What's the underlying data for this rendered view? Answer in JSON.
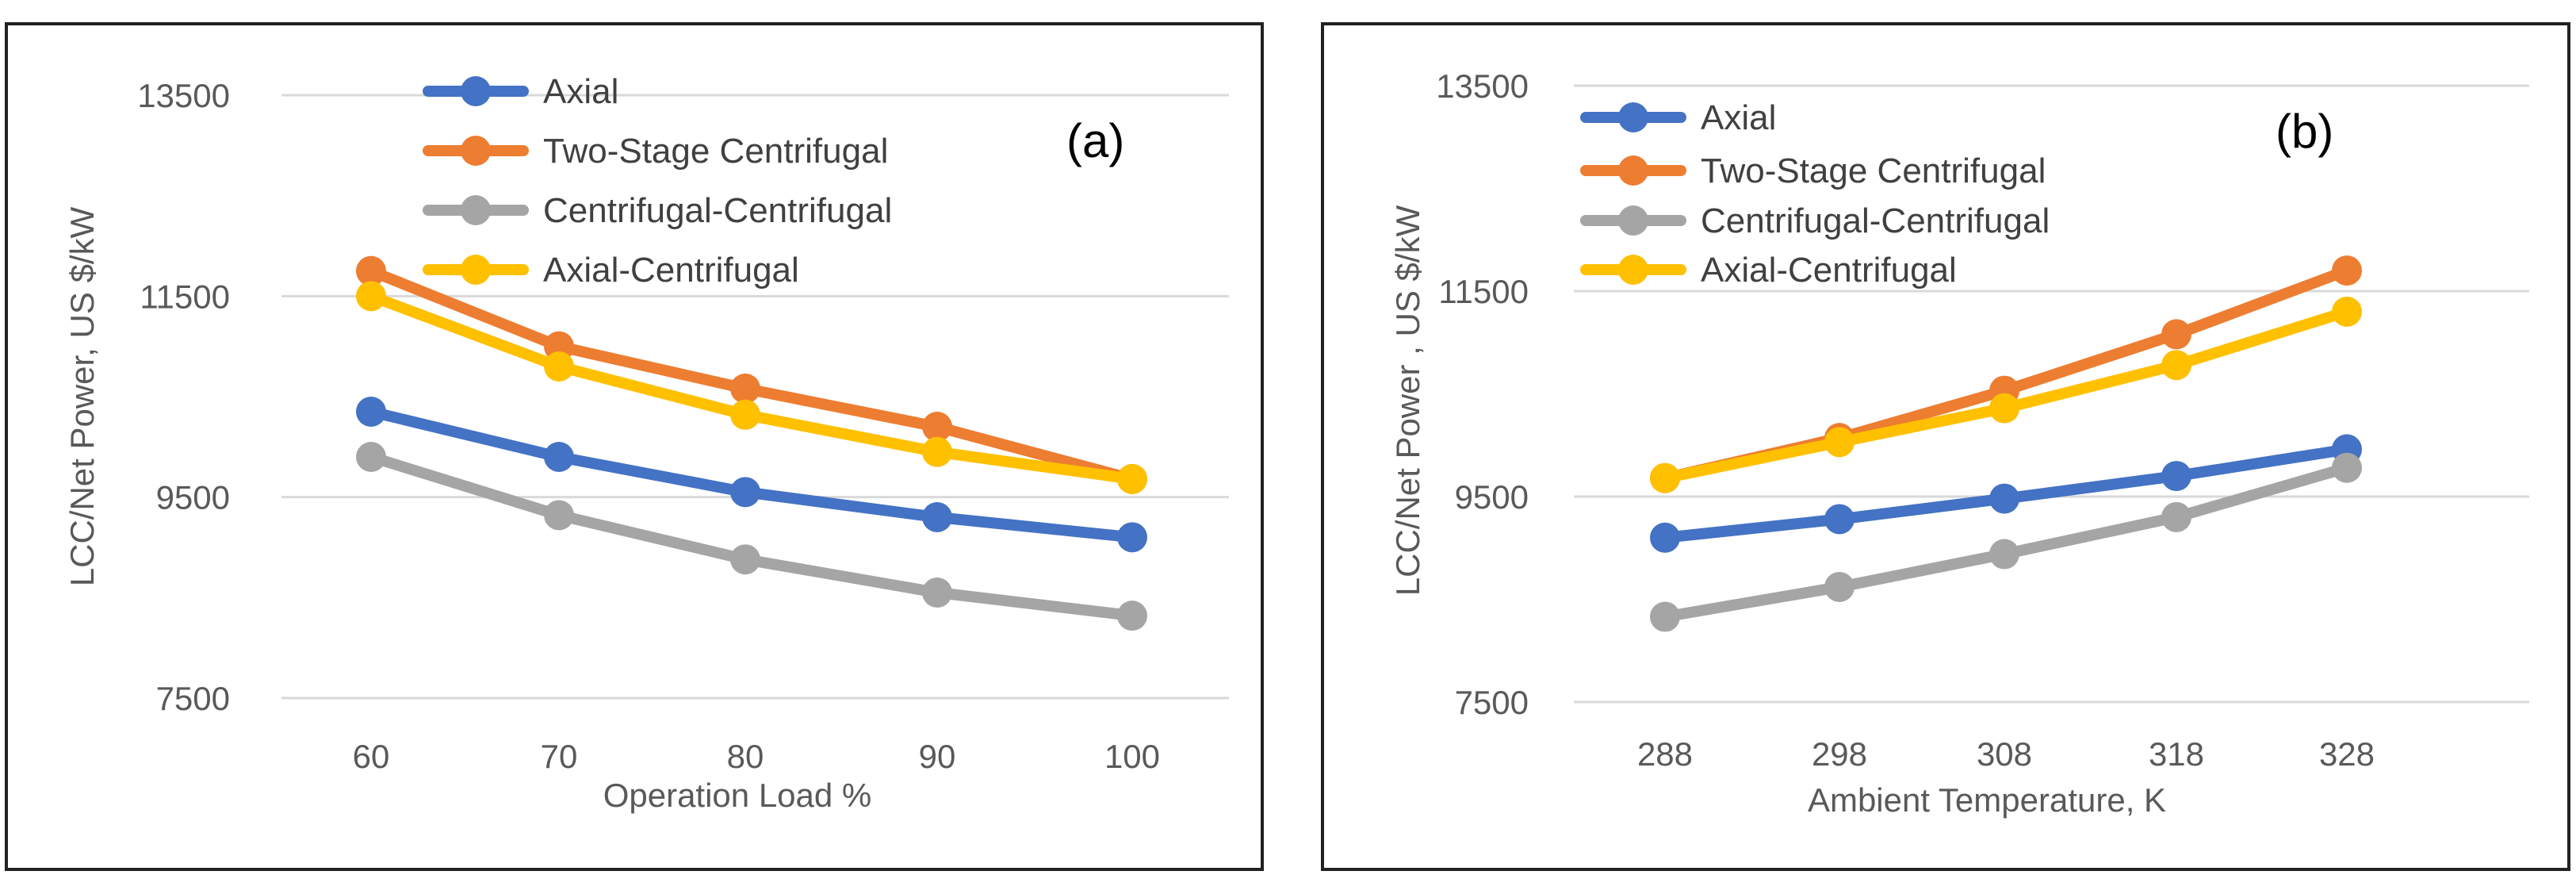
{
  "chart_data": [
    {
      "type": "line",
      "panel_label": "(a)",
      "title": "",
      "xlabel": "Operation Load %",
      "ylabel": "LCC/Net Power, US $/kW",
      "categories": [
        "60",
        "70",
        "80",
        "90",
        "100"
      ],
      "ylim": [
        7500,
        13500
      ],
      "yticks": [
        "7500",
        "9500",
        "11500",
        "13500"
      ],
      "grid": true,
      "series": [
        {
          "name": "Axial",
          "color": "#4472C4",
          "values": [
            10350,
            9900,
            9550,
            9300,
            9100
          ]
        },
        {
          "name": "Two-Stage Centrifugal",
          "color": "#ED7D31",
          "values": [
            11750,
            11000,
            10580,
            10200,
            9680
          ]
        },
        {
          "name": "Centrifugal-Centrifugal",
          "color": "#A5A5A5",
          "values": [
            9900,
            9320,
            8880,
            8550,
            8320
          ]
        },
        {
          "name": "Axial-Centrifugal",
          "color": "#FFC000",
          "values": [
            11500,
            10800,
            10320,
            9950,
            9680
          ]
        }
      ]
    },
    {
      "type": "line",
      "panel_label": "(b)",
      "title": "",
      "xlabel": "Ambient Temperature, K",
      "ylabel": "LCC/Net Power , US $/kW",
      "categories": [
        "288",
        "298",
        "308",
        "318",
        "328"
      ],
      "ylim": [
        7500,
        13500
      ],
      "yticks": [
        "7500",
        "9500",
        "11500",
        "13500"
      ],
      "grid": true,
      "series": [
        {
          "name": "Axial",
          "color": "#4472C4",
          "values": [
            9100,
            9280,
            9480,
            9700,
            9960
          ]
        },
        {
          "name": "Two-Stage Centrifugal",
          "color": "#ED7D31",
          "values": [
            9680,
            10070,
            10530,
            11080,
            11700
          ]
        },
        {
          "name": "Centrifugal-Centrifugal",
          "color": "#A5A5A5",
          "values": [
            8330,
            8620,
            8940,
            9300,
            9780
          ]
        },
        {
          "name": "Axial-Centrifugal",
          "color": "#FFC000",
          "values": [
            9680,
            10030,
            10360,
            10780,
            11300
          ]
        }
      ]
    }
  ]
}
